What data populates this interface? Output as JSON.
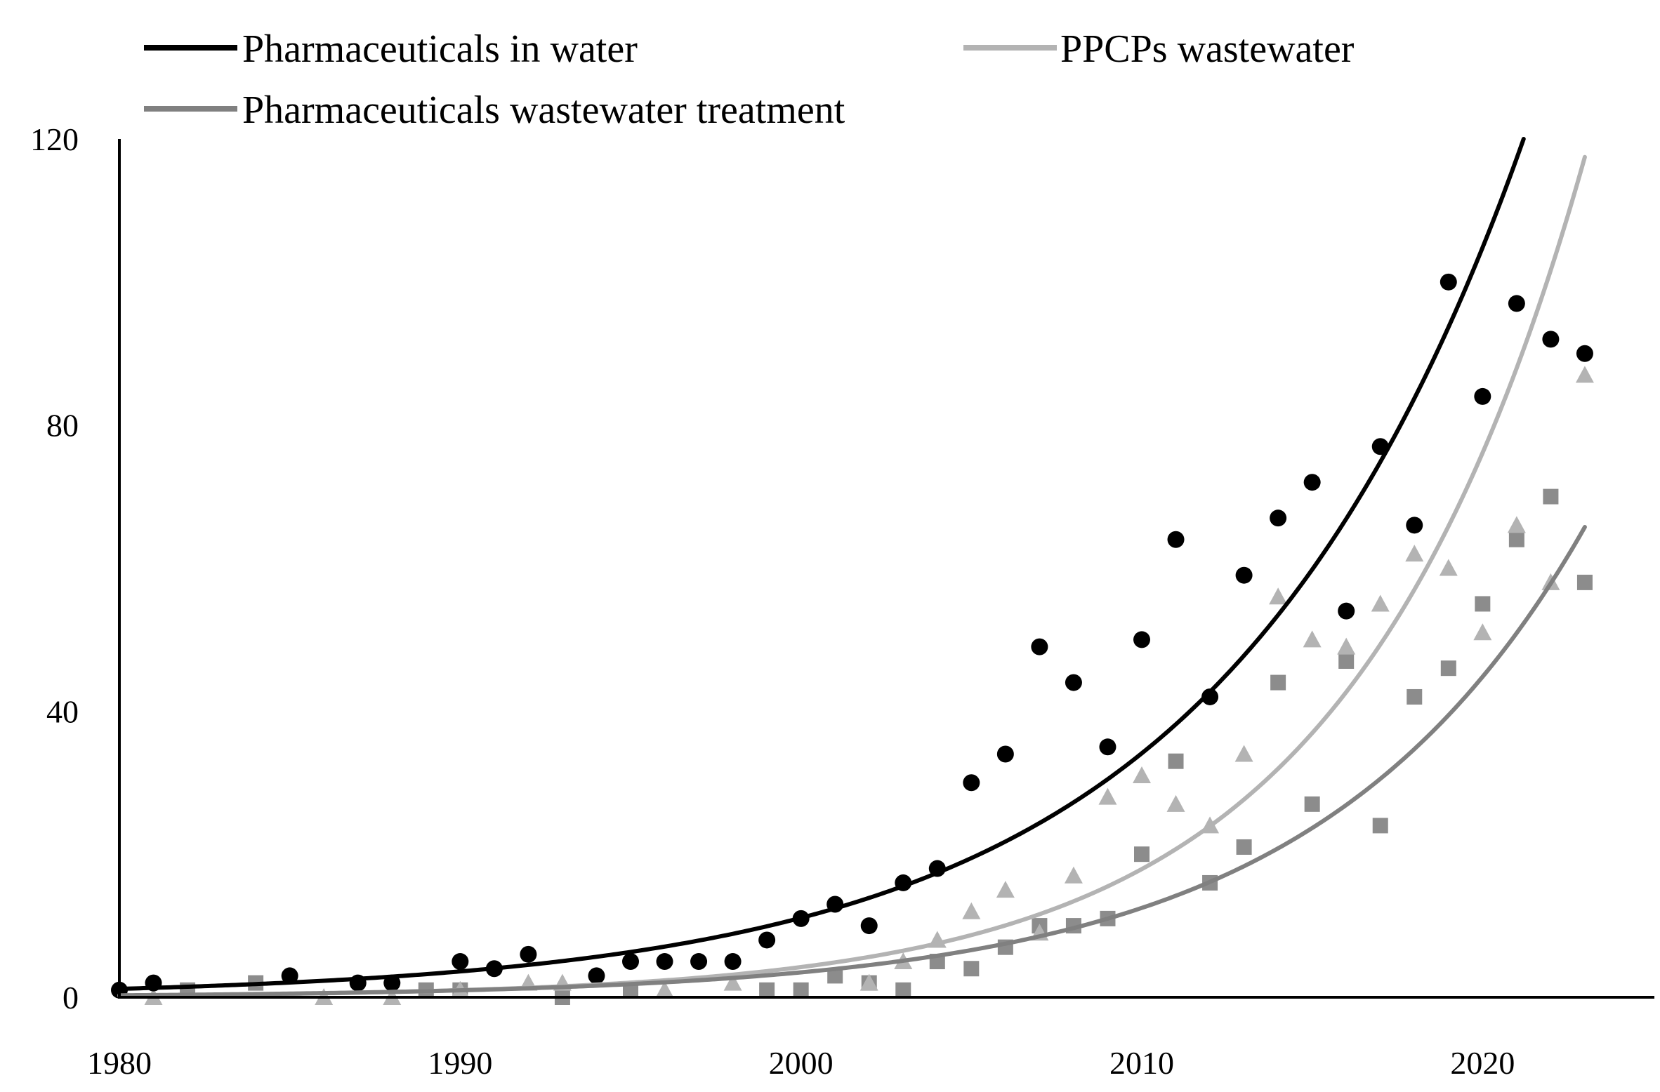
{
  "chart_data": {
    "type": "scatter",
    "title": "",
    "xlabel": "",
    "ylabel": "",
    "xlim": [
      1980,
      2025
    ],
    "ylim": [
      0,
      120
    ],
    "x_ticks": [
      "1980",
      "1990",
      "2000",
      "2010",
      "2020"
    ],
    "y_ticks": [
      "0",
      "40",
      "80",
      "120"
    ],
    "grid": false,
    "legend_position": "top",
    "legend": [
      {
        "label": "Pharmaceuticals in water",
        "color": "#000000"
      },
      {
        "label": "PPCPs wastewater",
        "color": "#b3b3b3"
      },
      {
        "label": "Pharmaceuticals wastewater treatment",
        "color": "#808080"
      }
    ],
    "series": [
      {
        "marker": "circle",
        "color": "#000000",
        "points": [
          [
            1980,
            1
          ],
          [
            1981,
            2
          ],
          [
            1985,
            3
          ],
          [
            1987,
            2
          ],
          [
            1988,
            2
          ],
          [
            1990,
            5
          ],
          [
            1991,
            4
          ],
          [
            1992,
            6
          ],
          [
            1994,
            3
          ],
          [
            1995,
            5
          ],
          [
            1996,
            5
          ],
          [
            1997,
            5
          ],
          [
            1998,
            5
          ],
          [
            1999,
            8
          ],
          [
            2000,
            11
          ],
          [
            2001,
            13
          ],
          [
            2002,
            10
          ],
          [
            2003,
            16
          ],
          [
            2004,
            18
          ],
          [
            2005,
            30
          ],
          [
            2006,
            34
          ],
          [
            2007,
            49
          ],
          [
            2008,
            44
          ],
          [
            2009,
            35
          ],
          [
            2010,
            50
          ],
          [
            2011,
            64
          ],
          [
            2012,
            42
          ],
          [
            2013,
            59
          ],
          [
            2014,
            67
          ],
          [
            2015,
            72
          ],
          [
            2016,
            54
          ],
          [
            2017,
            77
          ],
          [
            2018,
            66
          ],
          [
            2019,
            100
          ],
          [
            2020,
            84
          ],
          [
            2021,
            97
          ],
          [
            2022,
            92
          ],
          [
            2023,
            90
          ]
        ],
        "trend": {
          "color": "#000000",
          "x_end": 2022
        }
      },
      {
        "marker": "triangle",
        "color": "#b3b3b3",
        "points": [
          [
            1981,
            0
          ],
          [
            1986,
            0
          ],
          [
            1988,
            0
          ],
          [
            1990,
            1
          ],
          [
            1992,
            2
          ],
          [
            1993,
            2
          ],
          [
            1996,
            1
          ],
          [
            1998,
            2
          ],
          [
            2002,
            2
          ],
          [
            2003,
            5
          ],
          [
            2004,
            8
          ],
          [
            2005,
            12
          ],
          [
            2006,
            15
          ],
          [
            2007,
            9
          ],
          [
            2008,
            17
          ],
          [
            2009,
            28
          ],
          [
            2010,
            31
          ],
          [
            2011,
            27
          ],
          [
            2012,
            24
          ],
          [
            2013,
            34
          ],
          [
            2014,
            56
          ],
          [
            2015,
            50
          ],
          [
            2016,
            49
          ],
          [
            2017,
            55
          ],
          [
            2018,
            62
          ],
          [
            2019,
            60
          ],
          [
            2020,
            51
          ],
          [
            2021,
            66
          ],
          [
            2022,
            58
          ],
          [
            2023,
            87
          ]
        ],
        "trend": {
          "color": "#b3b3b3",
          "x_end": 2023
        }
      },
      {
        "marker": "square",
        "color": "#8c8c8c",
        "points": [
          [
            1982,
            1
          ],
          [
            1984,
            2
          ],
          [
            1989,
            1
          ],
          [
            1990,
            1
          ],
          [
            1993,
            0
          ],
          [
            1995,
            1
          ],
          [
            1999,
            1
          ],
          [
            2000,
            1
          ],
          [
            2001,
            3
          ],
          [
            2002,
            2
          ],
          [
            2003,
            1
          ],
          [
            2004,
            5
          ],
          [
            2005,
            4
          ],
          [
            2006,
            7
          ],
          [
            2007,
            10
          ],
          [
            2008,
            10
          ],
          [
            2009,
            11
          ],
          [
            2010,
            20
          ],
          [
            2011,
            33
          ],
          [
            2012,
            16
          ],
          [
            2013,
            21
          ],
          [
            2014,
            44
          ],
          [
            2015,
            27
          ],
          [
            2016,
            47
          ],
          [
            2017,
            24
          ],
          [
            2018,
            42
          ],
          [
            2019,
            46
          ],
          [
            2020,
            55
          ],
          [
            2021,
            64
          ],
          [
            2022,
            70
          ],
          [
            2023,
            58
          ]
        ],
        "trend": {
          "color": "#808080",
          "x_end": 2023
        }
      }
    ]
  }
}
